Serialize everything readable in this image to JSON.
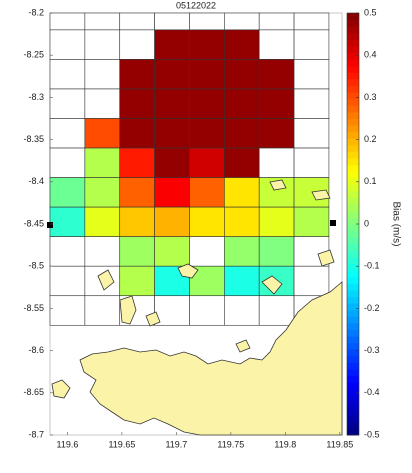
{
  "chart_data": {
    "type": "heatmap",
    "title": "05122022",
    "x": [
      119.6,
      119.632,
      119.664,
      119.696,
      119.728,
      119.76,
      119.792,
      119.824
    ],
    "y": [
      -8.2375,
      -8.2725,
      -8.3075,
      -8.3425,
      -8.3775,
      -8.4125,
      -8.4475,
      -8.4825,
      -8.5175,
      -8.5525
    ],
    "values": [
      [
        null,
        null,
        null,
        0.48,
        0.48,
        0.48,
        null,
        null
      ],
      [
        null,
        null,
        0.48,
        0.48,
        0.48,
        0.48,
        0.48,
        null
      ],
      [
        null,
        null,
        0.48,
        0.48,
        0.48,
        0.48,
        0.48,
        null
      ],
      [
        null,
        0.3,
        0.48,
        0.48,
        0.48,
        0.48,
        0.48,
        null
      ],
      [
        null,
        0.05,
        0.35,
        0.48,
        0.42,
        0.48,
        null,
        null
      ],
      [
        -0.02,
        0.05,
        0.28,
        0.38,
        0.28,
        0.15,
        0.07,
        0.07
      ],
      [
        -0.08,
        0.1,
        0.18,
        0.2,
        0.15,
        0.15,
        0.1,
        0.05
      ],
      [
        null,
        null,
        0.03,
        0.05,
        null,
        0.02,
        0.0,
        null
      ],
      [
        null,
        null,
        0.05,
        -0.1,
        0.03,
        -0.1,
        -0.07,
        null
      ],
      [
        null,
        null,
        null,
        null,
        null,
        null,
        null,
        null
      ]
    ],
    "colormap": "jet",
    "clim": [
      -0.5,
      0.5
    ],
    "cticks": [
      -0.5,
      -0.4,
      -0.3,
      -0.2,
      -0.1,
      0,
      0.1,
      0.2,
      0.3,
      0.4,
      0.5
    ],
    "colorbar_label": "Bias (m/s)",
    "xlim": [
      119.584,
      119.852
    ],
    "ylim": [
      -8.7,
      -8.2
    ],
    "xticks": [
      119.6,
      119.65,
      119.7,
      119.75,
      119.8,
      119.85
    ],
    "yticks": [
      -8.2,
      -8.25,
      -8.3,
      -8.35,
      -8.4,
      -8.45,
      -8.5,
      -8.55,
      -8.6,
      -8.65,
      -8.7
    ]
  }
}
